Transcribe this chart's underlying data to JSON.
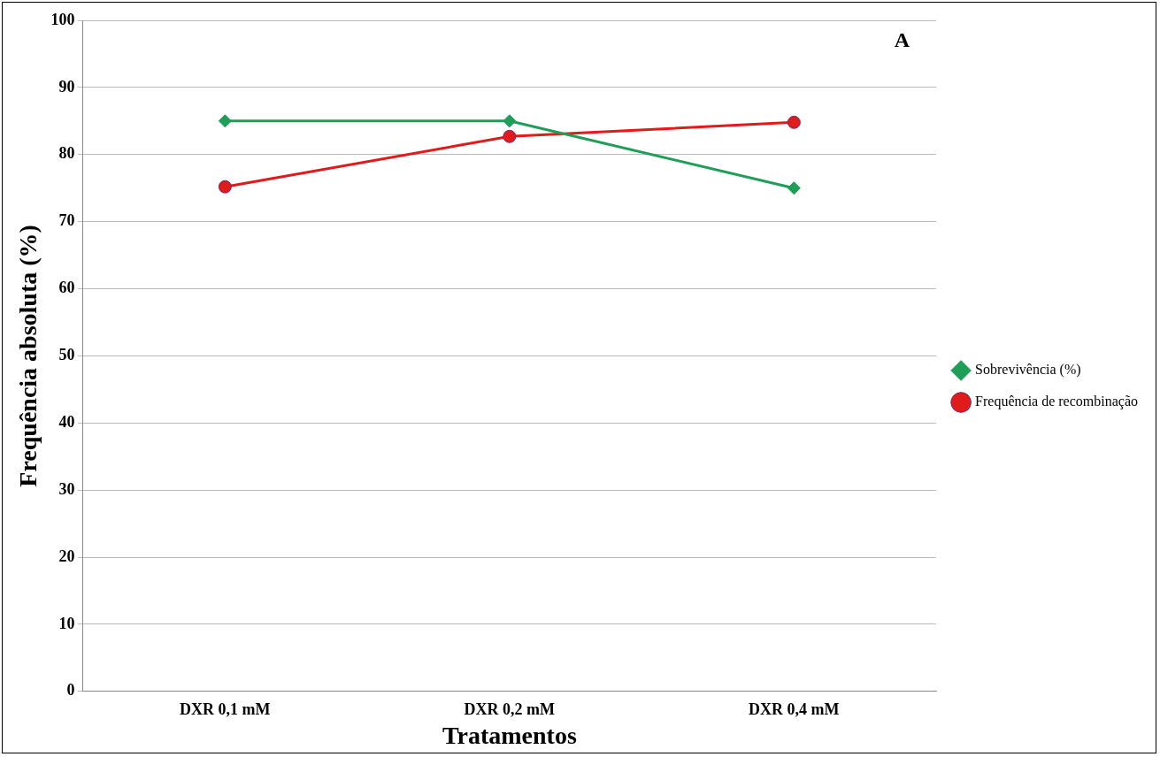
{
  "chart_data": {
    "type": "line",
    "xlabel": "Tratamentos",
    "ylabel": "Frequência absoluta (%)",
    "categories": [
      "DXR 0,1 mM",
      "DXR 0,2 mM",
      "DXR 0,4 mM"
    ],
    "series": [
      {
        "name": "Sobrevivência (%)",
        "color": "#1e9e57",
        "marker": "diamond",
        "values": [
          85,
          85,
          75
        ]
      },
      {
        "name": "Frequência de recombinação",
        "color": "#e01b1b",
        "marker": "circle",
        "values": [
          75.2,
          82.7,
          84.8
        ]
      }
    ],
    "ylim": [
      0,
      100
    ],
    "yticks": [
      0,
      10,
      20,
      30,
      40,
      50,
      60,
      70,
      80,
      90,
      100
    ],
    "grid": "y",
    "legend": "right",
    "line_style": "solid",
    "annotations": [
      "A"
    ]
  }
}
